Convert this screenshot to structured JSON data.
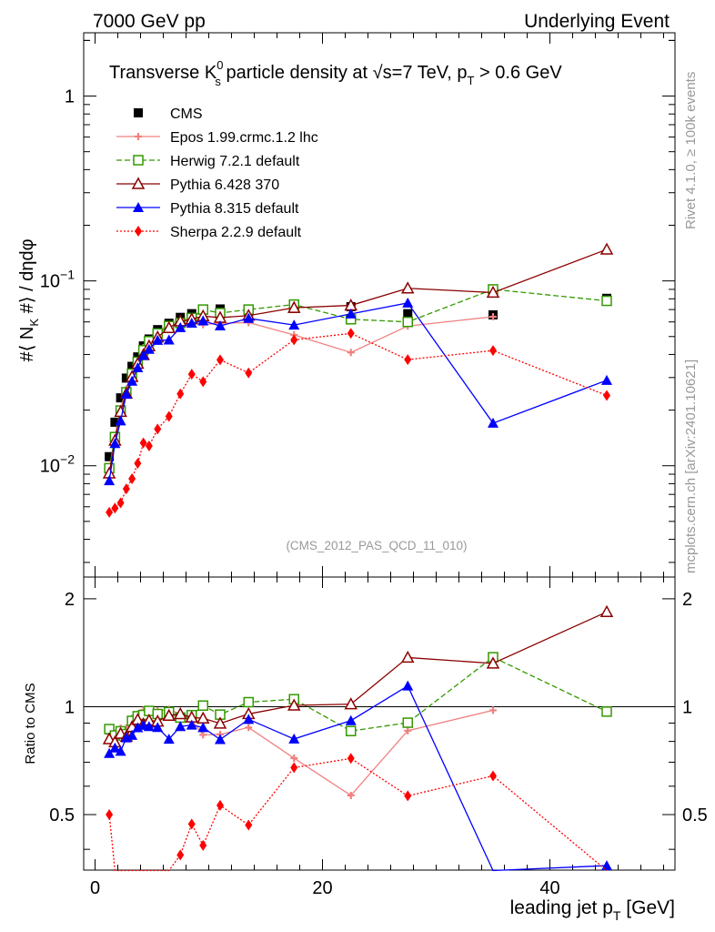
{
  "header": {
    "left": "7000 GeV pp",
    "right": "Underlying Event"
  },
  "side_labels": {
    "rivet": "Rivet 4.1.0, ≥ 100k events",
    "mcplots": "mcplots.cern.ch [arXiv:2401.10621]"
  },
  "colors": {
    "CMS": "#000000",
    "Epos": "#f08080",
    "Herwig": "#339900",
    "Pythia6": "#8b0000",
    "Pythia8": "#0000ff",
    "Sherpa": "#ff0000"
  },
  "chart_data": {
    "type": "scatter",
    "title": "Transverse K⁰s particle density at √s=7 TeV, pT > 0.6 GeV",
    "title_parts": {
      "a": "Transverse K",
      "sup": "0",
      "sub": "s",
      "b": " particle density at ",
      "sqrt": "√",
      "c": "s=7 TeV, p",
      "sub2": "T",
      "d": " > 0.6 GeV"
    },
    "annotation": "(CMS_2012_PAS_QCD_11_010)",
    "xlabel": "leading jet pT [GeV]",
    "xlabel_parts": {
      "a": "leading jet p",
      "sub": "T",
      "b": " [GeV]"
    },
    "ylabel": "#⟨ N_K #⟩ / dηdφ",
    "ylabel_parts": {
      "a": "#⟨ N",
      "sub": "K",
      "b": " #⟩ / dηdφ"
    },
    "ratio_ylabel": "Ratio to CMS",
    "xlim": [
      -1,
      51
    ],
    "ylim": [
      0.0025,
      2.2
    ],
    "yscale": "log",
    "ratio_ylim": [
      0.35,
      2.3
    ],
    "x_ticks": [
      0,
      20,
      40
    ],
    "y_ticks": [
      {
        "v": 1,
        "a": "1",
        "e": ""
      },
      {
        "v": 0.1,
        "a": "10",
        "e": "−1"
      },
      {
        "v": 0.01,
        "a": "10",
        "e": "−2"
      }
    ],
    "ratio_ticks": [
      {
        "v": 0.5,
        "l": "0.5"
      },
      {
        "v": 1,
        "l": "1"
      },
      {
        "v": 2,
        "l": "2"
      }
    ],
    "x": [
      1.25,
      1.75,
      2.25,
      2.75,
      3.25,
      3.75,
      4.25,
      4.75,
      5.5,
      6.5,
      7.5,
      8.5,
      9.5,
      11.0,
      13.5,
      17.5,
      22.5,
      27.5,
      35.0,
      45.0
    ],
    "series": [
      {
        "name": "CMS",
        "key": "CMS",
        "marker": "square",
        "line": "none",
        "values": [
          0.0112,
          0.0172,
          0.0233,
          0.0298,
          0.0345,
          0.0388,
          0.0445,
          0.0485,
          0.0545,
          0.059,
          0.0635,
          0.0665,
          0.0695,
          0.0705,
          0.068,
          0.071,
          0.0725,
          0.0665,
          0.0655,
          0.0805
        ]
      },
      {
        "name": "Epos 1.99.crmc.1.2 lhc",
        "key": "Epos",
        "marker": "cross",
        "line": "solid",
        "values": [
          0.0094,
          0.0145,
          0.0203,
          0.026,
          0.032,
          0.037,
          0.0435,
          0.047,
          0.053,
          0.058,
          0.0605,
          0.061,
          0.058,
          0.059,
          0.0595,
          0.051,
          0.041,
          0.057,
          0.064,
          null
        ]
      },
      {
        "name": "Herwig 7.2.1 default",
        "key": "Herwig",
        "marker": "open-square",
        "line": "dashed",
        "values": [
          0.0097,
          0.0143,
          0.0199,
          0.025,
          0.0315,
          0.0365,
          0.0422,
          0.0472,
          0.052,
          0.057,
          0.0592,
          0.063,
          0.07,
          0.067,
          0.07,
          0.0745,
          0.062,
          0.06,
          0.09,
          0.078
        ]
      },
      {
        "name": "Pythia 6.428 370",
        "key": "Pythia6",
        "marker": "open-triangle",
        "line": "solid",
        "values": [
          0.0091,
          0.0137,
          0.0196,
          0.0246,
          0.0303,
          0.0357,
          0.0398,
          0.0444,
          0.0496,
          0.0557,
          0.0606,
          0.0621,
          0.0645,
          0.0633,
          0.0649,
          0.0716,
          0.0737,
          0.0912,
          0.0865,
          0.148
        ]
      },
      {
        "name": "Pythia 8.315 default",
        "key": "Pythia8",
        "marker": "triangle",
        "line": "solid",
        "values": [
          0.0083,
          0.0132,
          0.0175,
          0.0244,
          0.0287,
          0.0339,
          0.0395,
          0.0427,
          0.0477,
          0.0479,
          0.0559,
          0.0591,
          0.0608,
          0.0571,
          0.0627,
          0.0577,
          0.0663,
          0.076,
          0.017,
          0.029
        ]
      },
      {
        "name": "Sherpa 2.2.9 default",
        "key": "Sherpa",
        "marker": "diamond",
        "line": "dotted",
        "values": [
          0.0056,
          0.0059,
          0.0063,
          0.0075,
          0.0085,
          0.0103,
          0.0133,
          0.0128,
          0.0158,
          0.0185,
          0.0245,
          0.0313,
          0.0285,
          0.0374,
          0.0318,
          0.048,
          0.052,
          0.0375,
          0.042,
          0.024
        ]
      }
    ]
  }
}
